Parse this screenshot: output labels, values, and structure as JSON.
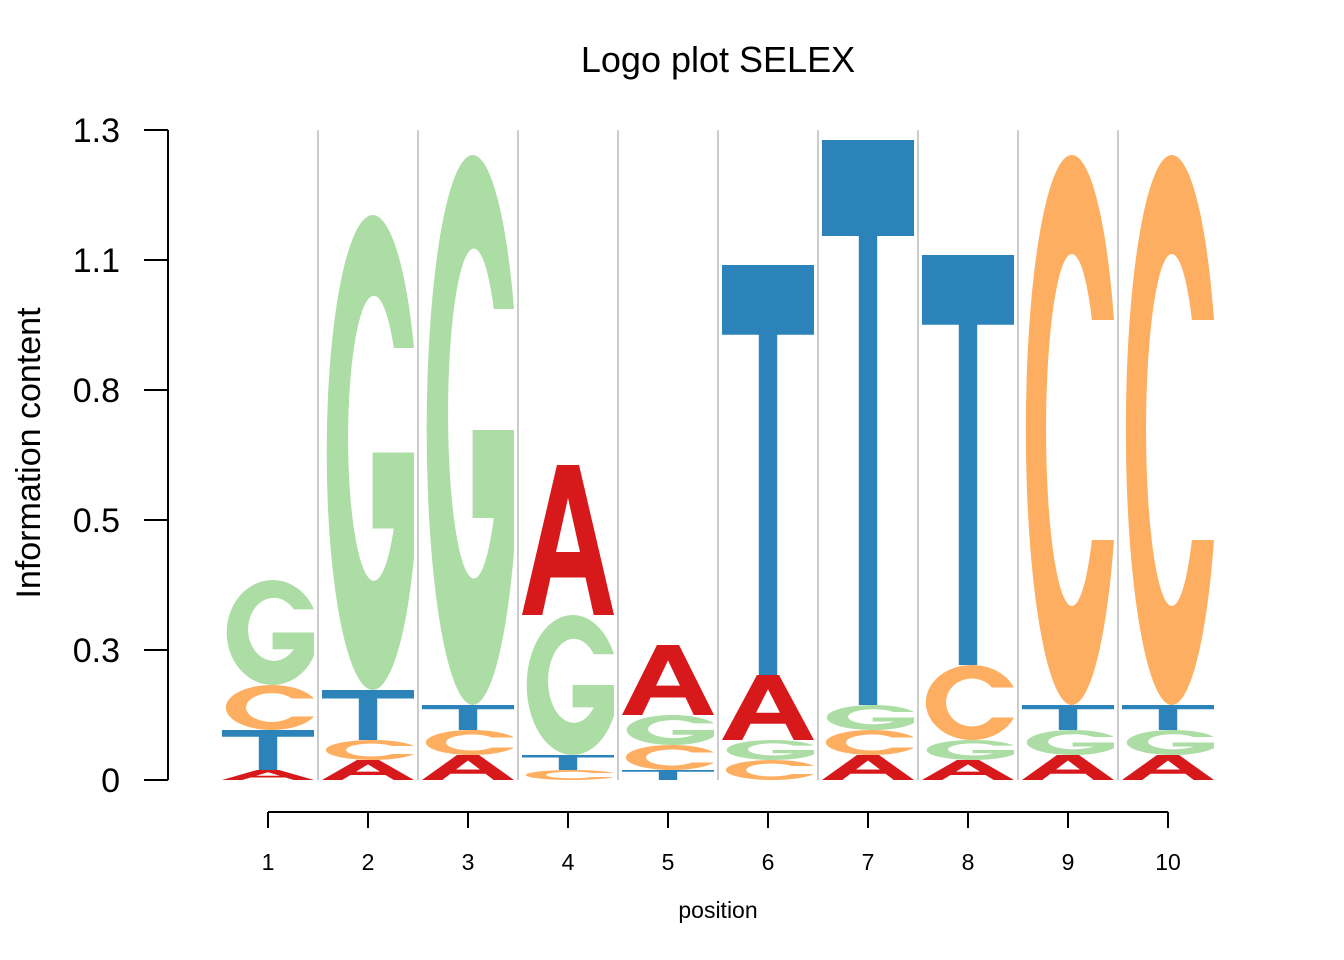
{
  "chart_data": {
    "type": "logo",
    "title": "Logo plot SELEX",
    "xlabel": "position",
    "ylabel": "Information content",
    "ylim": [
      0,
      1.3
    ],
    "yticks": [
      "0",
      "0.3",
      "0.5",
      "0.8",
      "1.1",
      "1.3"
    ],
    "ytick_values": [
      0,
      0.26,
      0.52,
      0.78,
      1.04,
      1.3
    ],
    "positions": [
      "1",
      "2",
      "3",
      "4",
      "5",
      "6",
      "7",
      "8",
      "9",
      "10"
    ],
    "grid": true,
    "colors": {
      "A": "#d7191c",
      "C": "#fdae61",
      "G": "#abdda4",
      "T": "#2b83ba"
    },
    "columns": [
      {
        "position": "1",
        "stack": [
          {
            "letter": "A",
            "height": 0.02
          },
          {
            "letter": "T",
            "height": 0.08
          },
          {
            "letter": "C",
            "height": 0.09
          },
          {
            "letter": "G",
            "height": 0.21
          }
        ]
      },
      {
        "position": "2",
        "stack": [
          {
            "letter": "A",
            "height": 0.04
          },
          {
            "letter": "C",
            "height": 0.04
          },
          {
            "letter": "T",
            "height": 0.1
          },
          {
            "letter": "G",
            "height": 0.95
          }
        ]
      },
      {
        "position": "3",
        "stack": [
          {
            "letter": "A",
            "height": 0.05
          },
          {
            "letter": "C",
            "height": 0.05
          },
          {
            "letter": "T",
            "height": 0.05
          },
          {
            "letter": "G",
            "height": 1.1
          }
        ]
      },
      {
        "position": "4",
        "stack": [
          {
            "letter": "C",
            "height": 0.02
          },
          {
            "letter": "T",
            "height": 0.03
          },
          {
            "letter": "G",
            "height": 0.28
          },
          {
            "letter": "A",
            "height": 0.3
          }
        ]
      },
      {
        "position": "5",
        "stack": [
          {
            "letter": "T",
            "height": 0.02
          },
          {
            "letter": "C",
            "height": 0.05
          },
          {
            "letter": "G",
            "height": 0.06
          },
          {
            "letter": "A",
            "height": 0.14
          }
        ]
      },
      {
        "position": "6",
        "stack": [
          {
            "letter": "C",
            "height": 0.04
          },
          {
            "letter": "G",
            "height": 0.04
          },
          {
            "letter": "A",
            "height": 0.13
          },
          {
            "letter": "T",
            "height": 0.82
          }
        ]
      },
      {
        "position": "7",
        "stack": [
          {
            "letter": "A",
            "height": 0.05
          },
          {
            "letter": "C",
            "height": 0.05
          },
          {
            "letter": "G",
            "height": 0.05
          },
          {
            "letter": "T",
            "height": 1.13
          }
        ]
      },
      {
        "position": "8",
        "stack": [
          {
            "letter": "A",
            "height": 0.04
          },
          {
            "letter": "G",
            "height": 0.04
          },
          {
            "letter": "C",
            "height": 0.15
          },
          {
            "letter": "T",
            "height": 0.82
          }
        ]
      },
      {
        "position": "9",
        "stack": [
          {
            "letter": "A",
            "height": 0.05
          },
          {
            "letter": "G",
            "height": 0.05
          },
          {
            "letter": "T",
            "height": 0.05
          },
          {
            "letter": "C",
            "height": 1.1
          }
        ]
      },
      {
        "position": "10",
        "stack": [
          {
            "letter": "A",
            "height": 0.05
          },
          {
            "letter": "G",
            "height": 0.05
          },
          {
            "letter": "T",
            "height": 0.05
          },
          {
            "letter": "C",
            "height": 1.1
          }
        ]
      }
    ]
  }
}
